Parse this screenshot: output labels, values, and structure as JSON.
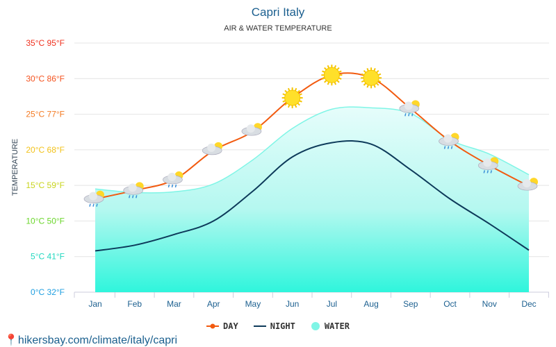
{
  "chart_data": {
    "type": "line",
    "title": "Capri Italy",
    "subtitle": "AIR & WATER TEMPERATURE",
    "ylabel": "TEMPERATURE",
    "categories": [
      "Jan",
      "Feb",
      "Mar",
      "Apr",
      "May",
      "Jun",
      "Jul",
      "Aug",
      "Sep",
      "Oct",
      "Nov",
      "Dec"
    ],
    "ylim": [
      0,
      35
    ],
    "yticks": [
      {
        "v": 0,
        "label": "0°C 32°F",
        "color": "#1e9ee0"
      },
      {
        "v": 5,
        "label": "5°C 41°F",
        "color": "#22d8c0"
      },
      {
        "v": 10,
        "label": "10°C 50°F",
        "color": "#6ad62a"
      },
      {
        "v": 15,
        "label": "15°C 59°F",
        "color": "#c8d41c"
      },
      {
        "v": 20,
        "label": "20°C 68°F",
        "color": "#f2c21a"
      },
      {
        "v": 25,
        "label": "25°C 77°F",
        "color": "#f47a22"
      },
      {
        "v": 30,
        "label": "30°C 86°F",
        "color": "#f4521e"
      },
      {
        "v": 35,
        "label": "35°C 95°F",
        "color": "#f0301e"
      }
    ],
    "grid": true,
    "legend_position": "bottom",
    "series": [
      {
        "name": "DAY",
        "color": "#f25a0f",
        "values": [
          13.1,
          14.3,
          15.8,
          19.9,
          22.6,
          27.3,
          30.5,
          30.1,
          25.8,
          21.2,
          17.8,
          14.9
        ]
      },
      {
        "name": "NIGHT",
        "color": "#0d3a5a",
        "values": [
          5.8,
          6.6,
          8.1,
          10.0,
          14.2,
          19.0,
          21.0,
          20.8,
          17.2,
          13.1,
          9.6,
          5.9
        ]
      },
      {
        "name": "WATER",
        "color": "#7ff5e6",
        "values": [
          14.5,
          14.0,
          14.1,
          15.2,
          18.6,
          23.0,
          25.7,
          25.9,
          25.1,
          21.4,
          19.4,
          16.5
        ]
      }
    ],
    "weather_icons": [
      "cloud-sun-rain-icon",
      "cloud-rain-icon",
      "cloud-sun-rain-icon",
      "cloud-sun-icon",
      "cloud-sun-icon",
      "sun-icon",
      "sun-icon",
      "sun-icon",
      "cloud-sun-rain-icon",
      "cloud-sun-rain-icon",
      "cloud-sun-rain-icon",
      "cloud-sun-icon"
    ]
  },
  "footer": {
    "url": "hikersbay.com/climate/italy/capri"
  }
}
